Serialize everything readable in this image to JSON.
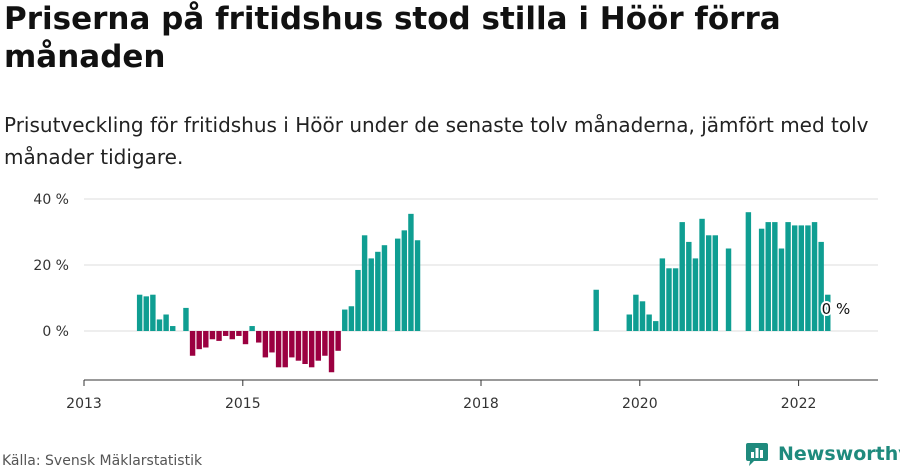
{
  "header": {
    "title": "Priserna på fritidshus stod stilla i Höör förra månaden",
    "subtitle": "Prisutveckling för fritidshus i Höör under de senaste tolv månaderna, jämfört med tolv månader tidigare."
  },
  "footer": {
    "source": "Källa: Svensk Mäklarstatistik",
    "brand": "Newsworthy"
  },
  "colors": {
    "positive": "#0f9e92",
    "negative": "#9b0040",
    "brand": "#1f8a7d"
  },
  "chart_data": {
    "type": "bar",
    "title": "Priserna på fritidshus stod stilla i Höör förra månaden",
    "subtitle": "Prisutveckling för fritidshus i Höör under de senaste tolv månaderna, jämfört med tolv månader tidigare.",
    "xlabel": "",
    "ylabel": "",
    "ylim": [
      -13,
      41
    ],
    "xlim": [
      "2013-01",
      "2022-12"
    ],
    "y_ticks": [
      0,
      20,
      40
    ],
    "y_tick_labels": [
      "0 %",
      "20 %",
      "40 %"
    ],
    "x_ticks": [
      "2013-01",
      "2015-01",
      "2018-01",
      "2020-01",
      "2022-01"
    ],
    "x_tick_labels": [
      "2013",
      "2015",
      "2018",
      "2020",
      "2022"
    ],
    "grid": true,
    "end_label": "0 %",
    "series": [
      {
        "values": [
          {
            "x": "2013-09",
            "y": 11
          },
          {
            "x": "2013-10",
            "y": 10.5
          },
          {
            "x": "2013-11",
            "y": 11
          },
          {
            "x": "2013-12",
            "y": 3.5
          },
          {
            "x": "2014-01",
            "y": 5
          },
          {
            "x": "2014-02",
            "y": 1.5
          },
          {
            "x": "2014-04",
            "y": 7
          },
          {
            "x": "2014-05",
            "y": -7.5
          },
          {
            "x": "2014-06",
            "y": -5.5
          },
          {
            "x": "2014-07",
            "y": -5
          },
          {
            "x": "2014-08",
            "y": -2.5
          },
          {
            "x": "2014-09",
            "y": -3
          },
          {
            "x": "2014-10",
            "y": -1.5
          },
          {
            "x": "2014-11",
            "y": -2.5
          },
          {
            "x": "2014-12",
            "y": -1.5
          },
          {
            "x": "2015-01",
            "y": -4
          },
          {
            "x": "2015-02",
            "y": 1.5
          },
          {
            "x": "2015-03",
            "y": -3.5
          },
          {
            "x": "2015-04",
            "y": -8
          },
          {
            "x": "2015-05",
            "y": -6.5
          },
          {
            "x": "2015-06",
            "y": -11
          },
          {
            "x": "2015-07",
            "y": -11
          },
          {
            "x": "2015-08",
            "y": -8
          },
          {
            "x": "2015-09",
            "y": -9
          },
          {
            "x": "2015-10",
            "y": -10
          },
          {
            "x": "2015-11",
            "y": -11
          },
          {
            "x": "2015-12",
            "y": -9
          },
          {
            "x": "2016-01",
            "y": -7.5
          },
          {
            "x": "2016-02",
            "y": -12.5
          },
          {
            "x": "2016-03",
            "y": -6
          },
          {
            "x": "2016-04",
            "y": 6.5
          },
          {
            "x": "2016-05",
            "y": 7.5
          },
          {
            "x": "2016-06",
            "y": 18.5
          },
          {
            "x": "2016-07",
            "y": 29
          },
          {
            "x": "2016-08",
            "y": 22
          },
          {
            "x": "2016-09",
            "y": 24
          },
          {
            "x": "2016-10",
            "y": 26
          },
          {
            "x": "2016-12",
            "y": 28
          },
          {
            "x": "2017-01",
            "y": 30.5
          },
          {
            "x": "2017-02",
            "y": 35.5
          },
          {
            "x": "2017-03",
            "y": 27.5
          },
          {
            "x": "2019-06",
            "y": 12.5
          },
          {
            "x": "2019-11",
            "y": 5
          },
          {
            "x": "2019-12",
            "y": 11
          },
          {
            "x": "2020-01",
            "y": 9
          },
          {
            "x": "2020-02",
            "y": 5
          },
          {
            "x": "2020-03",
            "y": 3
          },
          {
            "x": "2020-04",
            "y": 22
          },
          {
            "x": "2020-05",
            "y": 19
          },
          {
            "x": "2020-06",
            "y": 19
          },
          {
            "x": "2020-07",
            "y": 33
          },
          {
            "x": "2020-08",
            "y": 27
          },
          {
            "x": "2020-09",
            "y": 22
          },
          {
            "x": "2020-10",
            "y": 34
          },
          {
            "x": "2020-11",
            "y": 29
          },
          {
            "x": "2020-12",
            "y": 29
          },
          {
            "x": "2021-02",
            "y": 25
          },
          {
            "x": "2021-05",
            "y": 36
          },
          {
            "x": "2021-07",
            "y": 31
          },
          {
            "x": "2021-08",
            "y": 33
          },
          {
            "x": "2021-09",
            "y": 33
          },
          {
            "x": "2021-10",
            "y": 25
          },
          {
            "x": "2021-11",
            "y": 33
          },
          {
            "x": "2021-12",
            "y": 32
          },
          {
            "x": "2022-01",
            "y": 32
          },
          {
            "x": "2022-02",
            "y": 32
          },
          {
            "x": "2022-03",
            "y": 33
          },
          {
            "x": "2022-04",
            "y": 27
          },
          {
            "x": "2022-05",
            "y": 11
          },
          {
            "x": "2022-06",
            "y": 0
          }
        ]
      }
    ]
  }
}
